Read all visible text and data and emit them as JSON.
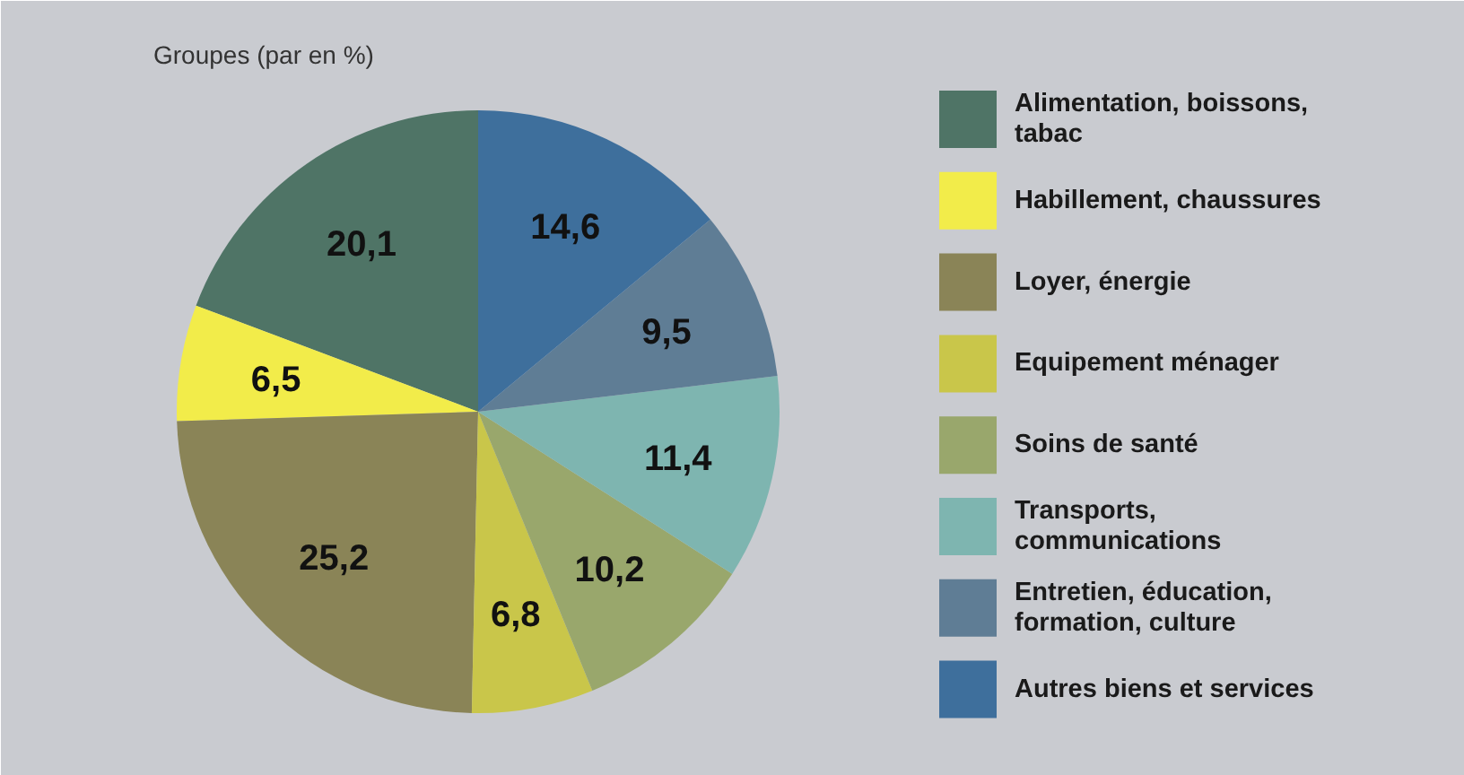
{
  "chart_data": {
    "type": "pie",
    "title": "Groupes (par en %)",
    "categories": [
      "Alimentation, boissons, tabac",
      "Habillement, chaussures",
      "Loyer, énergie",
      "Equipement ménager",
      "Soins de santé",
      "Transports, communications",
      "Entretien, éducation, formation, culture",
      "Autres biens et services"
    ],
    "values": [
      20.1,
      6.5,
      25.2,
      6.8,
      10.2,
      11.4,
      9.5,
      14.6
    ],
    "value_labels": [
      "20,1",
      "6,5",
      "25,2",
      "6,8",
      "10,2",
      "11,4",
      "9,5",
      "14,6"
    ],
    "colors": [
      "#4f7466",
      "#f2ec4a",
      "#8a8457",
      "#c9c64a",
      "#99a76c",
      "#7eb5b0",
      "#5f7d95",
      "#3e6f9c"
    ],
    "legend": "right"
  }
}
